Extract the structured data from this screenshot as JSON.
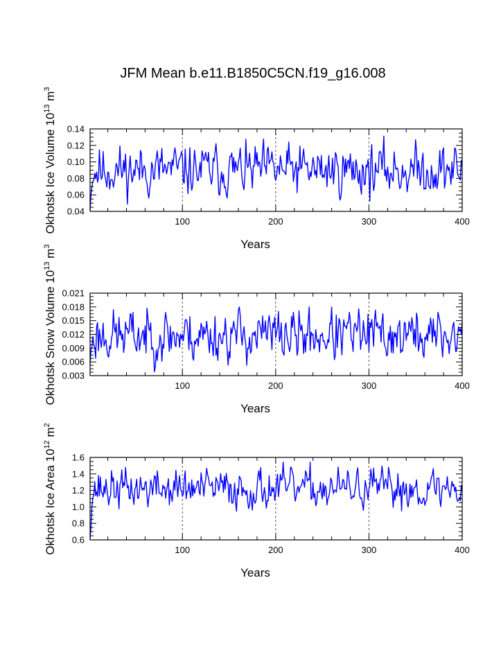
{
  "page_title": "JFM Mean b.e11.B1850C5CN.f19_g16.008",
  "colors": {
    "line": "#0000ff",
    "axis": "#000000",
    "refline": "#555555"
  },
  "chart_data": [
    {
      "type": "line",
      "name": "ice-volume",
      "ylabel_main": "Okhotsk Ice Volume 10",
      "ylabel_exp": "13",
      "ylabel_unit": " m",
      "ylabel_unit_exp": "3",
      "xlabel": "Years",
      "xlim": [
        1,
        400
      ],
      "ylim": [
        0.04,
        0.14
      ],
      "xticks": [
        100,
        200,
        300,
        400
      ],
      "xtick_labels": [
        "100",
        "200",
        "300",
        "400"
      ],
      "yticks": [
        0.04,
        0.06,
        0.08,
        0.1,
        0.12,
        0.14
      ],
      "ytick_labels": [
        "0.04",
        "0.06",
        "0.08",
        "0.10",
        "0.12",
        "0.14"
      ],
      "ref_lines_x": [
        100,
        200,
        300
      ],
      "series": [
        {
          "name": "ice volume",
          "mean": 0.09,
          "amp": 0.014,
          "init": 0.045,
          "seed": 11,
          "y": []
        }
      ]
    },
    {
      "type": "line",
      "name": "snow-volume",
      "ylabel_main": "Okhotsk Snow Volume 10",
      "ylabel_exp": "13",
      "ylabel_unit": " m",
      "ylabel_unit_exp": "3",
      "xlabel": "Years",
      "xlim": [
        1,
        400
      ],
      "ylim": [
        0.003,
        0.021
      ],
      "xticks": [
        100,
        200,
        300,
        400
      ],
      "xtick_labels": [
        "100",
        "200",
        "300",
        "400"
      ],
      "yticks": [
        0.003,
        0.006,
        0.009,
        0.012,
        0.015,
        0.018,
        0.021
      ],
      "ytick_labels": [
        "0.003",
        "0.006",
        "0.009",
        "0.012",
        "0.015",
        "0.018",
        "0.021"
      ],
      "ref_lines_x": [
        100,
        200,
        300
      ],
      "series": [
        {
          "name": "snow volume",
          "mean": 0.0118,
          "amp": 0.0026,
          "init": 0.006,
          "seed": 23,
          "y": []
        }
      ]
    },
    {
      "type": "line",
      "name": "ice-area",
      "ylabel_main": "Okhotsk Ice Area 10",
      "ylabel_exp": "12",
      "ylabel_unit": " m",
      "ylabel_unit_exp": "2",
      "xlabel": "Years",
      "xlim": [
        1,
        400
      ],
      "ylim": [
        0.6,
        1.6
      ],
      "xticks": [
        100,
        200,
        300,
        400
      ],
      "xtick_labels": [
        "100",
        "200",
        "300",
        "400"
      ],
      "yticks": [
        0.6,
        0.8,
        1.0,
        1.2,
        1.4,
        1.6
      ],
      "ytick_labels": [
        "0.6",
        "0.8",
        "1.0",
        "1.2",
        "1.4",
        "1.6"
      ],
      "ref_lines_x": [
        100,
        200,
        300
      ],
      "series": [
        {
          "name": "ice area",
          "mean": 1.22,
          "amp": 0.11,
          "init": 0.65,
          "seed": 37,
          "y": []
        }
      ]
    }
  ]
}
